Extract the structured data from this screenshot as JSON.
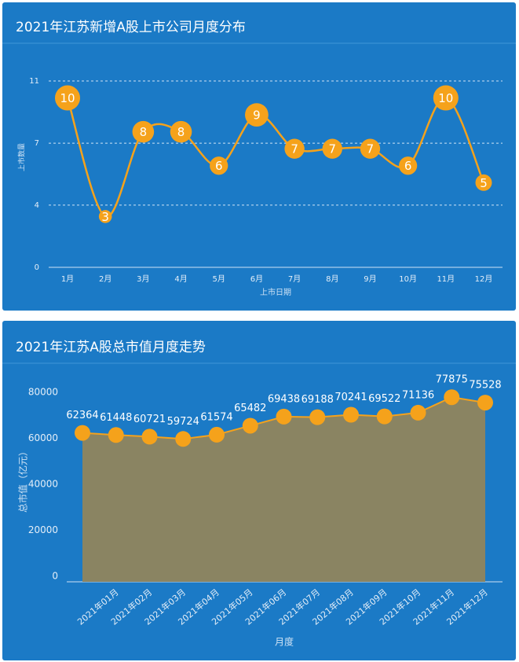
{
  "chart_data": [
    {
      "type": "line",
      "title": "2021年江苏新增A股上市公司月度分布",
      "y_label": "上市数量",
      "x_label": "上市日期",
      "categories": [
        "1月",
        "2月",
        "3月",
        "4月",
        "5月",
        "6月",
        "7月",
        "8月",
        "9月",
        "10月",
        "11月",
        "12月"
      ],
      "values": [
        10,
        3,
        8,
        8,
        6,
        9,
        7,
        7,
        7,
        6,
        10,
        5
      ],
      "color": "#f5a21b",
      "ylim": [
        0,
        11
      ],
      "yticks": [
        0,
        {
          "value": 3.67,
          "label": "4"
        },
        {
          "value": 7.33,
          "label": "7"
        },
        11
      ],
      "grid": true
    },
    {
      "type": "area",
      "title": "2021年江苏A股总市值月度走势",
      "y_label": "总市值（亿元）",
      "x_label": "月度",
      "categories": [
        null,
        "2021年01月",
        "2021年02月",
        "2021年03月",
        "2021年04月",
        "2021年05月",
        "2021年06月",
        "2021年07月",
        "2021年08月",
        "2021年09月",
        "2021年10月",
        "2021年11月",
        "2021年12月"
      ],
      "values": [
        62364,
        61448,
        60721,
        59724,
        61574,
        65482,
        69438,
        69188,
        70241,
        69522,
        71136,
        77875,
        75528
      ],
      "color": "#f5a21b",
      "area_color": "#8a8462",
      "ylim": [
        0,
        80000
      ],
      "yticks": [
        0,
        20000,
        40000,
        60000,
        80000
      ],
      "grid": false
    }
  ]
}
